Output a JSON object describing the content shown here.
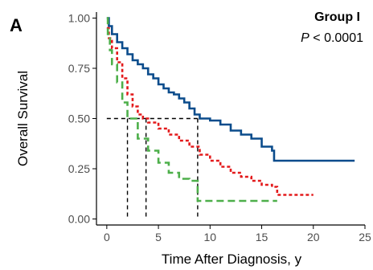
{
  "chart_data": {
    "type": "line",
    "panel_label": "A",
    "title": "Group I",
    "pvalue_symbol": "P",
    "pvalue_text": " < 0.0001",
    "xlabel": "Time After Diagnosis, y",
    "ylabel": "Overall Survival",
    "xlim": [
      -1,
      25
    ],
    "ylim": [
      -0.03,
      1.03
    ],
    "xticks": [
      0,
      5,
      10,
      15,
      20,
      25
    ],
    "yticks": [
      0.0,
      0.25,
      0.5,
      0.75,
      1.0
    ],
    "ytick_labels": [
      "0.00",
      "0.25",
      "0.50",
      "0.75",
      "1.00"
    ],
    "grid": false,
    "legend": "none",
    "series": [
      {
        "color": "#0b4c8c",
        "style": "solid",
        "x": [
          0,
          0.2,
          0.5,
          1,
          1.5,
          2,
          2.5,
          3,
          3.5,
          4,
          4.5,
          5,
          5.5,
          6,
          6.5,
          7,
          7.5,
          8,
          8.5,
          9,
          10,
          11,
          12,
          13,
          14,
          15,
          16,
          16.2,
          24
        ],
        "y": [
          1.0,
          0.96,
          0.92,
          0.88,
          0.85,
          0.82,
          0.79,
          0.77,
          0.75,
          0.72,
          0.7,
          0.67,
          0.65,
          0.63,
          0.62,
          0.6,
          0.58,
          0.55,
          0.52,
          0.5,
          0.49,
          0.47,
          0.44,
          0.42,
          0.4,
          0.36,
          0.34,
          0.29,
          0.29
        ]
      },
      {
        "color": "#e31a1c",
        "style": "dotted",
        "x": [
          0,
          0.2,
          0.5,
          1,
          1.5,
          2,
          2.5,
          3,
          3.5,
          4,
          5,
          6,
          7,
          8,
          9,
          10,
          11,
          12,
          13,
          14,
          15,
          16,
          16.5,
          20
        ],
        "y": [
          0.95,
          0.9,
          0.85,
          0.78,
          0.7,
          0.62,
          0.56,
          0.52,
          0.5,
          0.48,
          0.45,
          0.42,
          0.39,
          0.36,
          0.32,
          0.29,
          0.26,
          0.23,
          0.21,
          0.19,
          0.17,
          0.16,
          0.12,
          0.12
        ]
      },
      {
        "color": "#4daf4a",
        "style": "dashed",
        "x": [
          0,
          0.1,
          0.3,
          0.5,
          1,
          1.5,
          2,
          3,
          4,
          5,
          6,
          7,
          8,
          8.8,
          16.5
        ],
        "y": [
          1.0,
          0.92,
          0.84,
          0.77,
          0.68,
          0.58,
          0.5,
          0.4,
          0.34,
          0.28,
          0.23,
          0.2,
          0.19,
          0.09,
          0.09
        ]
      }
    ],
    "median_reference": {
      "y": 0.5,
      "x": [
        2,
        3.8,
        8.8
      ],
      "color": "#000000",
      "style": "dashed"
    }
  }
}
